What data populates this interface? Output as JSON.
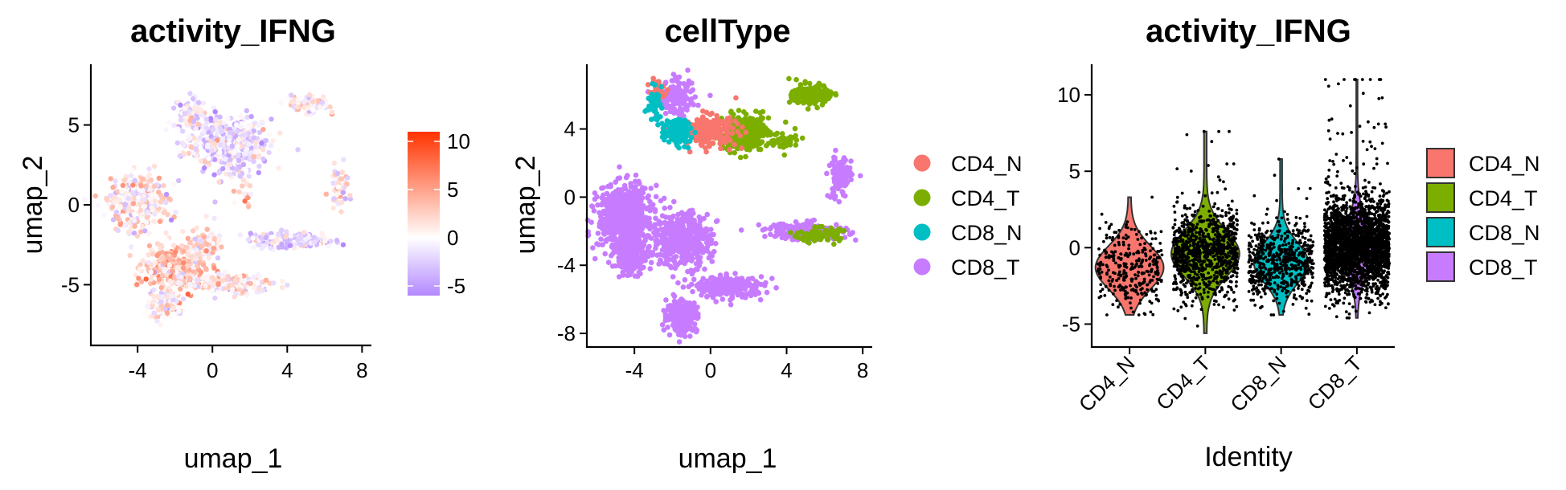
{
  "chart_data": [
    {
      "type": "scatter",
      "panel": "feature-plot",
      "title": "activity_IFNG",
      "xlabel": "umap_1",
      "ylabel": "umap_2",
      "xlim": [
        -6.5,
        8.5
      ],
      "ylim": [
        -8.8,
        8.8
      ],
      "xticks": [
        -4,
        0,
        4,
        8
      ],
      "yticks": [
        -5,
        0,
        5
      ],
      "color_scale": {
        "min": -6,
        "max": 11,
        "ticks": [
          10,
          5,
          0,
          -5
        ],
        "low_color": "#b388ff",
        "mid_color": "#ffffff",
        "high_color": "#ff3300"
      },
      "clusters": [
        {
          "cx": 0.8,
          "cy": 3.8,
          "rx": 2.3,
          "ry": 1.8,
          "n": 420,
          "mean": -1.5
        },
        {
          "cx": -1.2,
          "cy": 5.8,
          "rx": 0.9,
          "ry": 1.1,
          "n": 80,
          "mean": -1.0
        },
        {
          "cx": -4.0,
          "cy": 0.2,
          "rx": 1.5,
          "ry": 1.8,
          "n": 320,
          "mean": 0.5
        },
        {
          "cx": -2.0,
          "cy": -4.0,
          "rx": 1.6,
          "ry": 1.3,
          "n": 320,
          "mean": 2.5
        },
        {
          "cx": -2.5,
          "cy": -6.3,
          "rx": 0.9,
          "ry": 0.9,
          "n": 140,
          "mean": 0.5
        },
        {
          "cx": 1.0,
          "cy": -5.0,
          "rx": 2.2,
          "ry": 0.6,
          "n": 180,
          "mean": 0.5
        },
        {
          "cx": -0.5,
          "cy": -2.5,
          "rx": 1.0,
          "ry": 1.0,
          "n": 90,
          "mean": 1.0
        },
        {
          "cx": 5.2,
          "cy": 6.3,
          "rx": 1.0,
          "ry": 0.6,
          "n": 100,
          "mean": 0.5
        },
        {
          "cx": 4.2,
          "cy": -2.2,
          "rx": 2.3,
          "ry": 0.5,
          "n": 160,
          "mean": -2.0
        },
        {
          "cx": 6.8,
          "cy": 1.2,
          "rx": 0.5,
          "ry": 1.2,
          "n": 60,
          "mean": 1.0
        },
        {
          "cx": 1.8,
          "cy": 0.5,
          "rx": 0.8,
          "ry": 0.8,
          "n": 20,
          "mean": 2.0
        }
      ]
    },
    {
      "type": "scatter",
      "panel": "dim-plot",
      "title": "cellType",
      "xlabel": "umap_1",
      "ylabel": "umap_2",
      "xlim": [
        -6.5,
        8.5
      ],
      "ylim": [
        -8.8,
        7.8
      ],
      "xticks": [
        -4,
        0,
        4,
        8
      ],
      "yticks": [
        -8,
        -4,
        0,
        4
      ],
      "legend_position": "right",
      "categories": [
        "CD4_N",
        "CD4_T",
        "CD8_N",
        "CD8_T"
      ],
      "colors": [
        "#f8766d",
        "#7cae00",
        "#00bfc4",
        "#c77cff"
      ],
      "clusters": [
        {
          "cat": 3,
          "cx": -4.5,
          "cy": -1.2,
          "rx": 1.4,
          "ry": 1.8,
          "n": 700
        },
        {
          "cat": 3,
          "cx": -4.2,
          "cy": -3.5,
          "rx": 0.9,
          "ry": 1.0,
          "n": 200
        },
        {
          "cat": 3,
          "cx": -1.5,
          "cy": -2.5,
          "rx": 1.5,
          "ry": 1.6,
          "n": 420
        },
        {
          "cat": 3,
          "cx": -1.5,
          "cy": -7.0,
          "rx": 0.8,
          "ry": 0.9,
          "n": 260
        },
        {
          "cat": 3,
          "cx": 1.0,
          "cy": -5.3,
          "rx": 1.8,
          "ry": 0.6,
          "n": 260
        },
        {
          "cat": 3,
          "cx": -1.8,
          "cy": 5.8,
          "rx": 1.0,
          "ry": 1.0,
          "n": 150
        },
        {
          "cat": 3,
          "cx": 6.8,
          "cy": 1.2,
          "rx": 0.6,
          "ry": 1.3,
          "n": 120
        },
        {
          "cat": 3,
          "cx": 5.0,
          "cy": -2.0,
          "rx": 2.2,
          "ry": 0.5,
          "n": 160
        },
        {
          "cat": 1,
          "cx": 1.8,
          "cy": 3.8,
          "rx": 1.3,
          "ry": 1.0,
          "n": 380
        },
        {
          "cat": 1,
          "cx": 5.3,
          "cy": 6.0,
          "rx": 1.0,
          "ry": 0.6,
          "n": 180
        },
        {
          "cat": 1,
          "cx": 5.6,
          "cy": -2.2,
          "rx": 1.2,
          "ry": 0.4,
          "n": 90
        },
        {
          "cat": 1,
          "cx": 4.0,
          "cy": 3.2,
          "rx": 0.6,
          "ry": 0.6,
          "n": 40
        },
        {
          "cat": 0,
          "cx": -0.1,
          "cy": 3.9,
          "rx": 1.5,
          "ry": 0.9,
          "n": 220
        },
        {
          "cat": 0,
          "cx": -2.8,
          "cy": 6.2,
          "rx": 0.4,
          "ry": 0.6,
          "n": 40
        },
        {
          "cat": 2,
          "cx": -1.8,
          "cy": 3.8,
          "rx": 0.8,
          "ry": 0.8,
          "n": 110
        },
        {
          "cat": 2,
          "cx": -3.0,
          "cy": 5.5,
          "rx": 0.4,
          "ry": 0.9,
          "n": 40
        }
      ]
    },
    {
      "type": "violin",
      "panel": "violin-plot",
      "title": "activity_IFNG",
      "xlabel": "Identity",
      "ylabel": "",
      "ylim": [
        -6.5,
        12
      ],
      "yticks": [
        -5,
        0,
        5,
        10
      ],
      "legend_position": "right",
      "categories": [
        "CD4_N",
        "CD4_T",
        "CD8_N",
        "CD8_T"
      ],
      "colors": [
        "#f8766d",
        "#7cae00",
        "#00bfc4",
        "#c77cff"
      ],
      "groups": [
        {
          "name": "CD4_N",
          "center": -1.3,
          "sd": 1.4,
          "min": -4.4,
          "max": 3.3,
          "n": 300,
          "width": 1.0
        },
        {
          "name": "CD4_T",
          "center": -0.4,
          "sd": 1.5,
          "min": -5.6,
          "max": 7.6,
          "n": 900,
          "width": 1.0
        },
        {
          "name": "CD8_N",
          "center": -1.0,
          "sd": 1.3,
          "min": -4.4,
          "max": 5.8,
          "n": 600,
          "width": 0.8
        },
        {
          "name": "CD8_T",
          "center": 0.0,
          "sd": 1.6,
          "min": -4.6,
          "max": 11.0,
          "n": 2500,
          "width": 0.5
        }
      ]
    }
  ]
}
